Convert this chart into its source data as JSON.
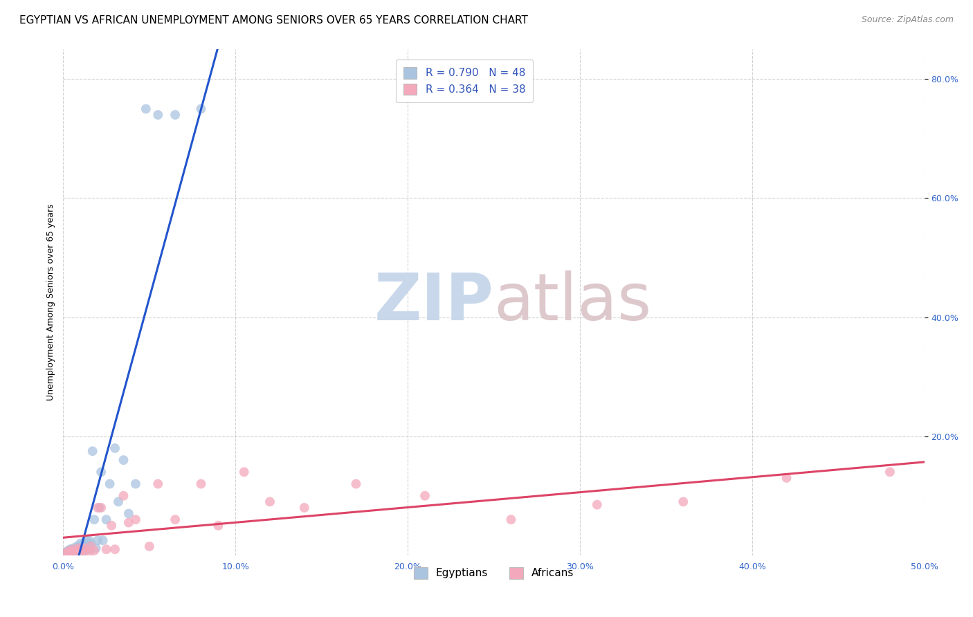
{
  "title": "EGYPTIAN VS AFRICAN UNEMPLOYMENT AMONG SENIORS OVER 65 YEARS CORRELATION CHART",
  "source": "Source: ZipAtlas.com",
  "ylabel": "Unemployment Among Seniors over 65 years",
  "xlim": [
    0.0,
    0.5
  ],
  "ylim": [
    0.0,
    0.85
  ],
  "xtick_labels": [
    "0.0%",
    "10.0%",
    "20.0%",
    "30.0%",
    "40.0%",
    "50.0%"
  ],
  "xtick_vals": [
    0.0,
    0.1,
    0.2,
    0.3,
    0.4,
    0.5
  ],
  "ytick_labels": [
    "20.0%",
    "40.0%",
    "60.0%",
    "80.0%"
  ],
  "ytick_vals": [
    0.2,
    0.4,
    0.6,
    0.8
  ],
  "egyptian_color": "#aac4e0",
  "african_color": "#f4a8bb",
  "egyptian_line_color": "#2255cc",
  "african_line_color": "#dd4466",
  "r_egyptian": 0.79,
  "n_egyptian": 48,
  "r_african": 0.364,
  "n_african": 38,
  "watermark_zip_color": "#c8d8ea",
  "watermark_atlas_color": "#ddc8cc",
  "legend_label_egyptian": "Egyptians",
  "legend_label_african": "Africans",
  "egyptian_x": [
    0.001,
    0.002,
    0.003,
    0.003,
    0.004,
    0.004,
    0.005,
    0.005,
    0.006,
    0.006,
    0.007,
    0.007,
    0.008,
    0.008,
    0.008,
    0.009,
    0.009,
    0.01,
    0.01,
    0.01,
    0.011,
    0.011,
    0.012,
    0.012,
    0.013,
    0.013,
    0.014,
    0.015,
    0.015,
    0.016,
    0.017,
    0.018,
    0.019,
    0.02,
    0.021,
    0.022,
    0.023,
    0.025,
    0.027,
    0.03,
    0.032,
    0.035,
    0.038,
    0.042,
    0.048,
    0.055,
    0.065,
    0.08
  ],
  "egyptian_y": [
    0.005,
    0.005,
    0.005,
    0.008,
    0.005,
    0.01,
    0.005,
    0.01,
    0.005,
    0.012,
    0.005,
    0.008,
    0.005,
    0.01,
    0.015,
    0.008,
    0.012,
    0.005,
    0.012,
    0.02,
    0.008,
    0.015,
    0.01,
    0.02,
    0.008,
    0.025,
    0.015,
    0.01,
    0.025,
    0.02,
    0.175,
    0.06,
    0.012,
    0.025,
    0.08,
    0.14,
    0.025,
    0.06,
    0.12,
    0.18,
    0.09,
    0.16,
    0.07,
    0.12,
    0.75,
    0.74,
    0.74,
    0.75
  ],
  "african_x": [
    0.002,
    0.003,
    0.004,
    0.005,
    0.006,
    0.007,
    0.008,
    0.009,
    0.01,
    0.011,
    0.012,
    0.013,
    0.015,
    0.016,
    0.018,
    0.02,
    0.022,
    0.025,
    0.028,
    0.03,
    0.035,
    0.038,
    0.042,
    0.05,
    0.055,
    0.065,
    0.08,
    0.09,
    0.105,
    0.12,
    0.14,
    0.17,
    0.21,
    0.26,
    0.31,
    0.36,
    0.42,
    0.48
  ],
  "african_y": [
    0.005,
    0.005,
    0.008,
    0.005,
    0.01,
    0.005,
    0.008,
    0.012,
    0.005,
    0.01,
    0.008,
    0.012,
    0.005,
    0.015,
    0.008,
    0.08,
    0.08,
    0.01,
    0.05,
    0.01,
    0.1,
    0.055,
    0.06,
    0.015,
    0.12,
    0.06,
    0.12,
    0.05,
    0.14,
    0.09,
    0.08,
    0.12,
    0.1,
    0.06,
    0.085,
    0.09,
    0.13,
    0.14
  ],
  "title_fontsize": 11,
  "source_fontsize": 9,
  "axis_label_fontsize": 9,
  "tick_fontsize": 9,
  "legend_fontsize": 11
}
